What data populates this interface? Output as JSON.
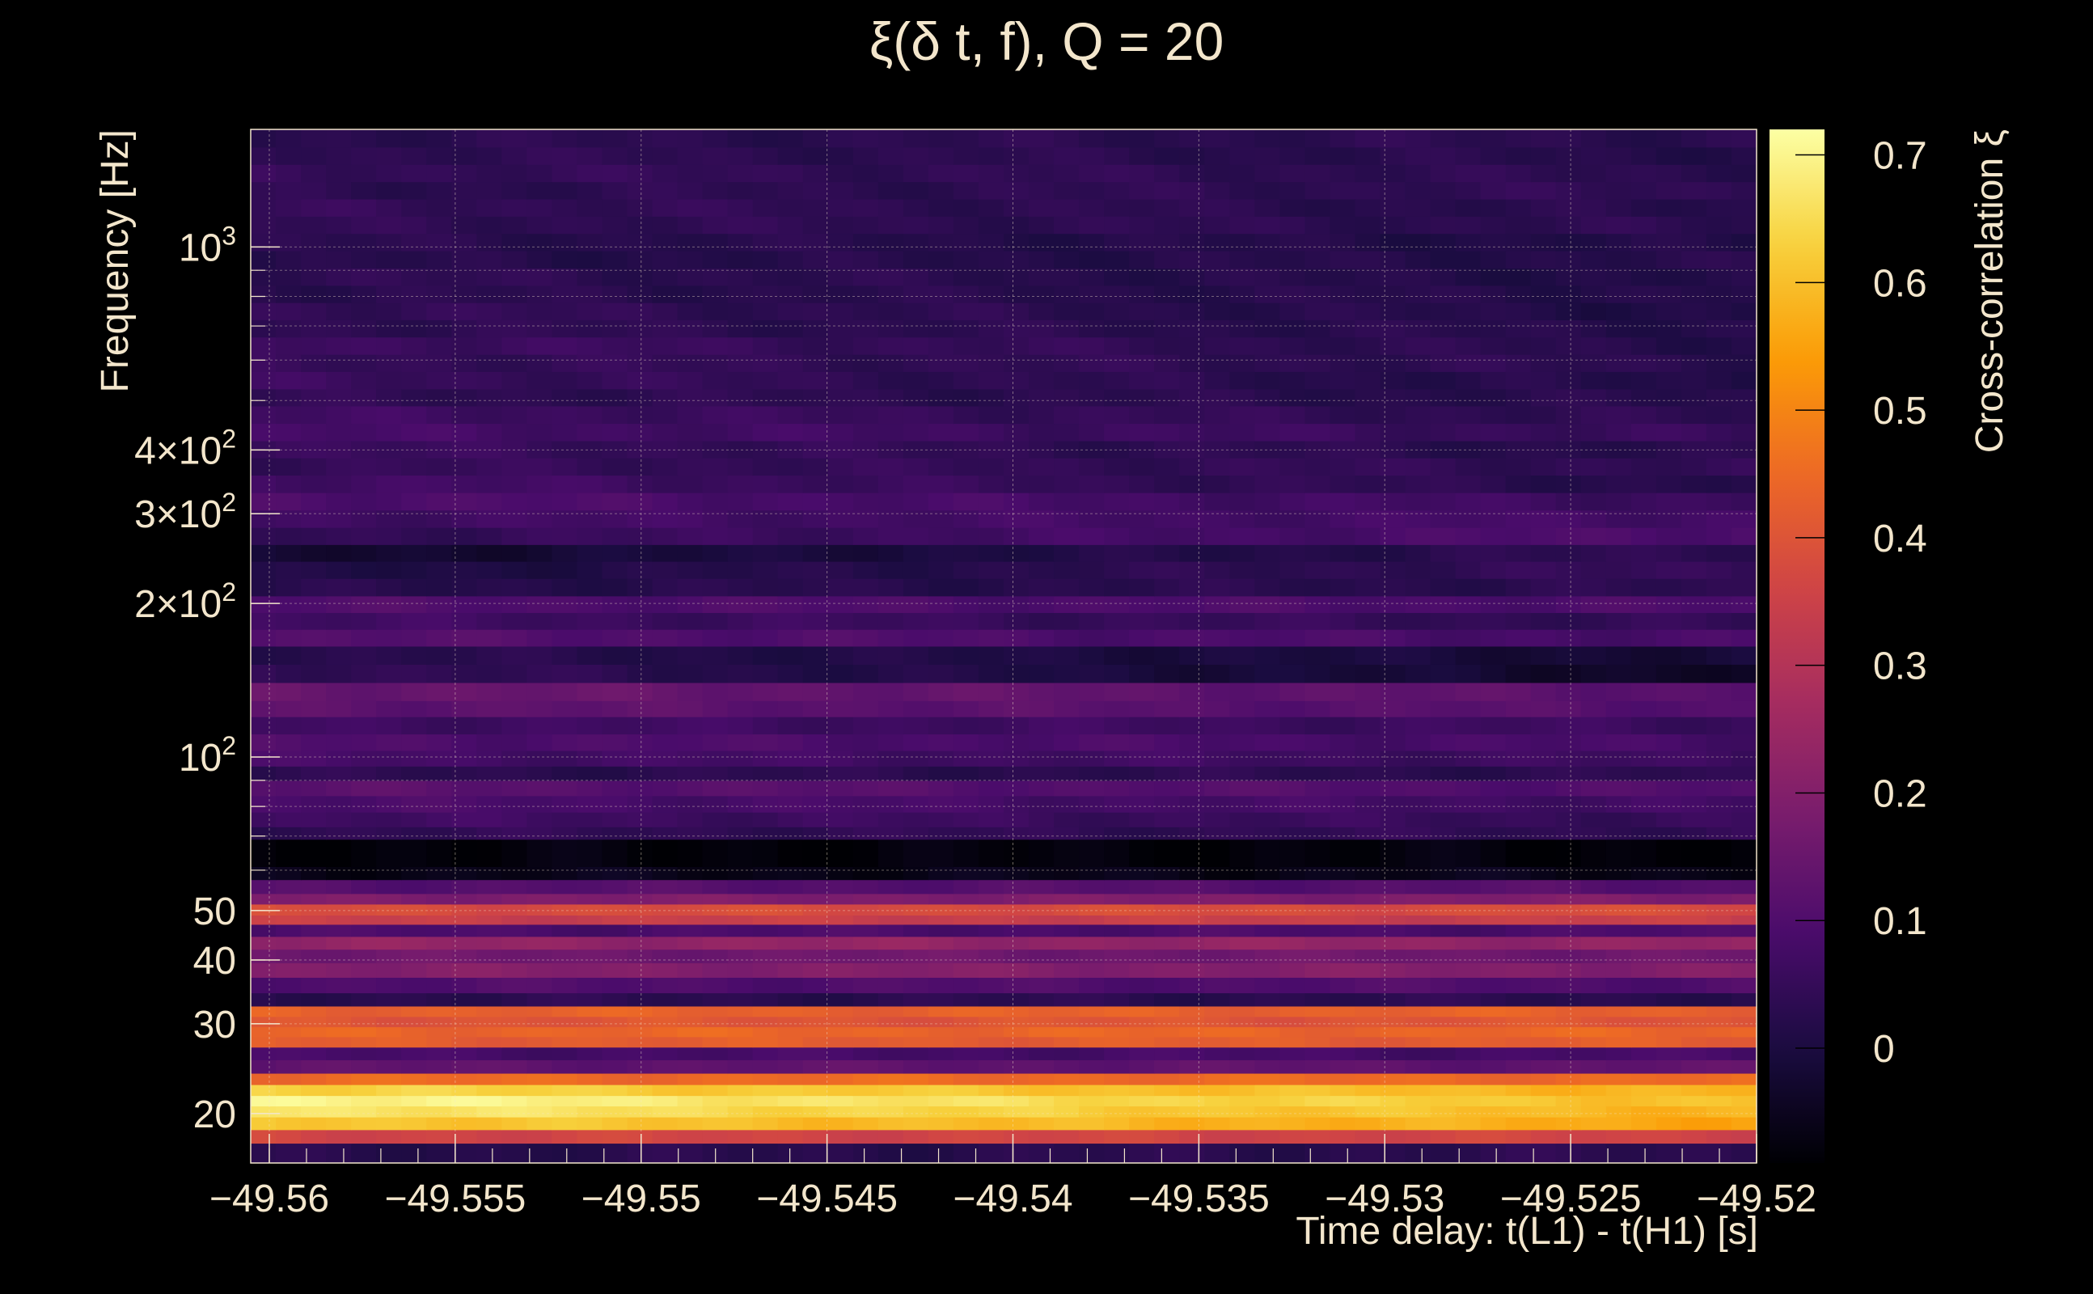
{
  "chart_data": {
    "type": "heatmap",
    "title": "ξ(δ t, f), Q = 20",
    "xlabel": "Time delay: t(L1) - t(H1) [s]",
    "ylabel": "Frequency [Hz]",
    "colorbar_label": "Cross-correlation ξ",
    "xlim": [
      -49.5605,
      -49.52
    ],
    "ylim": [
      16,
      1700
    ],
    "y_scale": "log",
    "zlim": [
      -0.09,
      0.72
    ],
    "grid": true,
    "x_ticks": [
      {
        "value": -49.56,
        "label": "−49.56"
      },
      {
        "value": -49.555,
        "label": "−49.555"
      },
      {
        "value": -49.55,
        "label": "−49.55"
      },
      {
        "value": -49.545,
        "label": "−49.545"
      },
      {
        "value": -49.54,
        "label": "−49.54"
      },
      {
        "value": -49.535,
        "label": "−49.535"
      },
      {
        "value": -49.53,
        "label": "−49.53"
      },
      {
        "value": -49.525,
        "label": "−49.525"
      },
      {
        "value": -49.52,
        "label": "−49.52"
      }
    ],
    "y_ticks": [
      {
        "value": 20,
        "label": "20"
      },
      {
        "value": 30,
        "label": "30"
      },
      {
        "value": 40,
        "label": "40"
      },
      {
        "value": 50,
        "label": "50"
      },
      {
        "value": 100,
        "label": "10",
        "sup": "2"
      },
      {
        "value": 200,
        "label": "2×10",
        "sup": "2"
      },
      {
        "value": 300,
        "label": "3×10",
        "sup": "2"
      },
      {
        "value": 400,
        "label": "4×10",
        "sup": "2"
      },
      {
        "value": 1000,
        "label": "10",
        "sup": "3"
      }
    ],
    "colorbar_ticks": [
      {
        "value": 0,
        "label": "0"
      },
      {
        "value": 0.1,
        "label": "0.1"
      },
      {
        "value": 0.2,
        "label": "0.2"
      },
      {
        "value": 0.3,
        "label": "0.3"
      },
      {
        "value": 0.4,
        "label": "0.4"
      },
      {
        "value": 0.5,
        "label": "0.5"
      },
      {
        "value": 0.6,
        "label": "0.6"
      },
      {
        "value": 0.7,
        "label": "0.7"
      }
    ],
    "colormap": [
      "#000004",
      "#1b0c41",
      "#4a0c6b",
      "#781c6d",
      "#a52c60",
      "#cf4446",
      "#ed6925",
      "#fb9b06",
      "#f7d13d",
      "#fcffa4"
    ],
    "n_time_bins": 60,
    "frequency_bands": [
      {
        "f_low": 16.0,
        "f_high": 17.5,
        "xi_start": 0.02,
        "xi_end": 0.03
      },
      {
        "f_low": 17.5,
        "f_high": 18.6,
        "xi_start": 0.36,
        "xi_end": 0.36
      },
      {
        "f_low": 18.6,
        "f_high": 19.7,
        "xi_start": 0.62,
        "xi_end": 0.56
      },
      {
        "f_low": 19.7,
        "f_high": 20.7,
        "xi_start": 0.68,
        "xi_end": 0.58
      },
      {
        "f_low": 20.7,
        "f_high": 21.7,
        "xi_start": 0.71,
        "xi_end": 0.6
      },
      {
        "f_low": 21.7,
        "f_high": 22.8,
        "xi_start": 0.64,
        "xi_end": 0.58
      },
      {
        "f_low": 22.8,
        "f_high": 24.0,
        "xi_start": 0.45,
        "xi_end": 0.45
      },
      {
        "f_low": 24.0,
        "f_high": 25.5,
        "xi_start": 0.13,
        "xi_end": 0.13
      },
      {
        "f_low": 25.5,
        "f_high": 27.0,
        "xi_start": 0.08,
        "xi_end": 0.08
      },
      {
        "f_low": 27.0,
        "f_high": 28.3,
        "xi_start": 0.42,
        "xi_end": 0.42
      },
      {
        "f_low": 28.3,
        "f_high": 29.6,
        "xi_start": 0.44,
        "xi_end": 0.44
      },
      {
        "f_low": 29.6,
        "f_high": 31.0,
        "xi_start": 0.4,
        "xi_end": 0.4
      },
      {
        "f_low": 31.0,
        "f_high": 32.5,
        "xi_start": 0.43,
        "xi_end": 0.43
      },
      {
        "f_low": 32.5,
        "f_high": 34.5,
        "xi_start": 0.03,
        "xi_end": 0.03
      },
      {
        "f_low": 34.5,
        "f_high": 37.0,
        "xi_start": 0.1,
        "xi_end": 0.1
      },
      {
        "f_low": 37.0,
        "f_high": 39.5,
        "xi_start": 0.2,
        "xi_end": 0.2
      },
      {
        "f_low": 39.5,
        "f_high": 42.0,
        "xi_start": 0.16,
        "xi_end": 0.16
      },
      {
        "f_low": 42.0,
        "f_high": 44.5,
        "xi_start": 0.23,
        "xi_end": 0.23
      },
      {
        "f_low": 44.5,
        "f_high": 47.0,
        "xi_start": 0.09,
        "xi_end": 0.09
      },
      {
        "f_low": 47.0,
        "f_high": 49.0,
        "xi_start": 0.34,
        "xi_end": 0.34
      },
      {
        "f_low": 49.0,
        "f_high": 51.5,
        "xi_start": 0.38,
        "xi_end": 0.38
      },
      {
        "f_low": 51.5,
        "f_high": 54.0,
        "xi_start": 0.19,
        "xi_end": 0.19
      },
      {
        "f_low": 54.0,
        "f_high": 57.5,
        "xi_start": 0.11,
        "xi_end": 0.11
      },
      {
        "f_low": 57.5,
        "f_high": 61.0,
        "xi_start": -0.06,
        "xi_end": -0.06
      },
      {
        "f_low": 61.0,
        "f_high": 69.0,
        "xi_start": -0.08,
        "xi_end": -0.08
      },
      {
        "f_low": 69.0,
        "f_high": 73.0,
        "xi_start": 0.04,
        "xi_end": 0.04
      },
      {
        "f_low": 73.0,
        "f_high": 78.0,
        "xi_start": 0.07,
        "xi_end": 0.05
      },
      {
        "f_low": 78.0,
        "f_high": 84.0,
        "xi_start": 0.09,
        "xi_end": 0.07
      },
      {
        "f_low": 84.0,
        "f_high": 90.0,
        "xi_start": 0.12,
        "xi_end": 0.1
      },
      {
        "f_low": 90.0,
        "f_high": 96.0,
        "xi_start": 0.03,
        "xi_end": 0.03
      },
      {
        "f_low": 96.0,
        "f_high": 103.0,
        "xi_start": 0.08,
        "xi_end": 0.06
      },
      {
        "f_low": 103.0,
        "f_high": 111.0,
        "xi_start": 0.1,
        "xi_end": 0.08
      },
      {
        "f_low": 111.0,
        "f_high": 120.0,
        "xi_start": 0.07,
        "xi_end": 0.06
      },
      {
        "f_low": 120.0,
        "f_high": 129.0,
        "xi_start": 0.13,
        "xi_end": 0.11
      },
      {
        "f_low": 129.0,
        "f_high": 140.0,
        "xi_start": 0.15,
        "xi_end": 0.12
      },
      {
        "f_low": 140.0,
        "f_high": 152.0,
        "xi_start": 0.05,
        "xi_end": -0.04
      },
      {
        "f_low": 152.0,
        "f_high": 165.0,
        "xi_start": 0.03,
        "xi_end": -0.02
      },
      {
        "f_low": 165.0,
        "f_high": 178.0,
        "xi_start": 0.11,
        "xi_end": 0.08
      },
      {
        "f_low": 178.0,
        "f_high": 192.0,
        "xi_start": 0.07,
        "xi_end": 0.04
      },
      {
        "f_low": 192.0,
        "f_high": 207.0,
        "xi_start": 0.1,
        "xi_end": 0.09
      },
      {
        "f_low": 207.0,
        "f_high": 224.0,
        "xi_start": 0.02,
        "xi_end": 0.03
      },
      {
        "f_low": 224.0,
        "f_high": 242.0,
        "xi_start": 0.0,
        "xi_end": 0.05
      },
      {
        "f_low": 242.0,
        "f_high": 261.0,
        "xi_start": -0.03,
        "xi_end": 0.04
      },
      {
        "f_low": 261.0,
        "f_high": 282.0,
        "xi_start": 0.04,
        "xi_end": 0.1
      },
      {
        "f_low": 282.0,
        "f_high": 305.0,
        "xi_start": 0.07,
        "xi_end": 0.08
      },
      {
        "f_low": 305.0,
        "f_high": 330.0,
        "xi_start": 0.1,
        "xi_end": 0.06
      },
      {
        "f_low": 330.0,
        "f_high": 357.0,
        "xi_start": 0.08,
        "xi_end": 0.02
      },
      {
        "f_low": 357.0,
        "f_high": 386.0,
        "xi_start": 0.05,
        "xi_end": 0.04
      },
      {
        "f_low": 386.0,
        "f_high": 417.0,
        "xi_start": 0.06,
        "xi_end": 0.02
      },
      {
        "f_low": 417.0,
        "f_high": 451.0,
        "xi_start": 0.08,
        "xi_end": 0.05
      },
      {
        "f_low": 451.0,
        "f_high": 488.0,
        "xi_start": 0.07,
        "xi_end": 0.03
      },
      {
        "f_low": 488.0,
        "f_high": 527.0,
        "xi_start": 0.04,
        "xi_end": 0.02
      },
      {
        "f_low": 527.0,
        "f_high": 570.0,
        "xi_start": 0.06,
        "xi_end": 0.01
      },
      {
        "f_low": 570.0,
        "f_high": 616.0,
        "xi_start": 0.05,
        "xi_end": 0.03
      },
      {
        "f_low": 616.0,
        "f_high": 666.0,
        "xi_start": 0.07,
        "xi_end": 0.02
      },
      {
        "f_low": 666.0,
        "f_high": 720.0,
        "xi_start": 0.04,
        "xi_end": 0.02
      },
      {
        "f_low": 720.0,
        "f_high": 778.0,
        "xi_start": 0.05,
        "xi_end": 0.01
      },
      {
        "f_low": 778.0,
        "f_high": 841.0,
        "xi_start": 0.03,
        "xi_end": 0.02
      },
      {
        "f_low": 841.0,
        "f_high": 909.0,
        "xi_start": 0.04,
        "xi_end": 0.01
      },
      {
        "f_low": 909.0,
        "f_high": 983.0,
        "xi_start": 0.02,
        "xi_end": 0.02
      },
      {
        "f_low": 983.0,
        "f_high": 1063.0,
        "xi_start": 0.03,
        "xi_end": 0.01
      },
      {
        "f_low": 1063.0,
        "f_high": 1149.0,
        "xi_start": 0.04,
        "xi_end": 0.03
      },
      {
        "f_low": 1149.0,
        "f_high": 1242.0,
        "xi_start": 0.05,
        "xi_end": 0.02
      },
      {
        "f_low": 1242.0,
        "f_high": 1343.0,
        "xi_start": 0.03,
        "xi_end": 0.04
      },
      {
        "f_low": 1343.0,
        "f_high": 1452.0,
        "xi_start": 0.05,
        "xi_end": 0.03
      },
      {
        "f_low": 1452.0,
        "f_high": 1570.0,
        "xi_start": 0.04,
        "xi_end": 0.02
      },
      {
        "f_low": 1570.0,
        "f_high": 1700.0,
        "xi_start": 0.03,
        "xi_end": 0.03
      }
    ]
  }
}
